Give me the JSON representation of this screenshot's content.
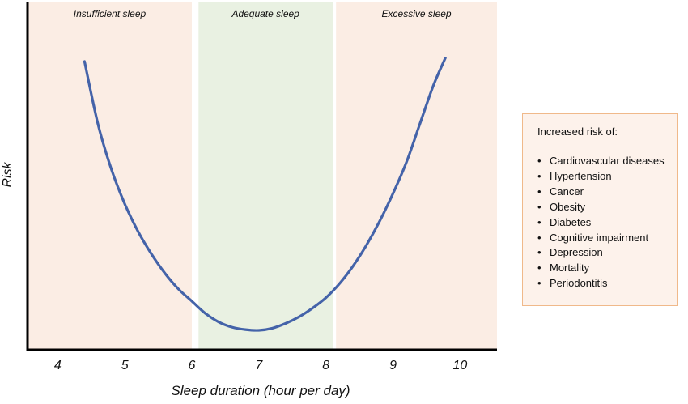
{
  "chart_data": {
    "type": "line",
    "title": "",
    "xlabel": "Sleep duration (hour per day)",
    "ylabel": "Risk",
    "xlim": [
      3.55,
      10.55
    ],
    "ylim": [
      0,
      100
    ],
    "x_ticks": [
      4,
      5,
      6,
      7,
      8,
      9,
      10
    ],
    "grid": false,
    "regions": [
      {
        "label": "Insufficient sleep",
        "x_start": 3.55,
        "x_end": 6.0,
        "color": "#fbede4"
      },
      {
        "label": "Adequate sleep",
        "x_start": 6.1,
        "x_end": 8.1,
        "color": "#e9f1e2"
      },
      {
        "label": "Excessive sleep",
        "x_start": 8.15,
        "x_end": 10.55,
        "color": "#fbede4"
      }
    ],
    "series": [
      {
        "name": "Risk curve",
        "color": "#4463a9",
        "x": [
          4.4,
          4.6,
          4.8,
          5.0,
          5.2,
          5.4,
          5.6,
          5.8,
          6.0,
          6.2,
          6.4,
          6.6,
          6.8,
          7.0,
          7.2,
          7.4,
          7.6,
          7.8,
          8.0,
          8.2,
          8.4,
          8.6,
          8.8,
          9.0,
          9.2,
          9.4,
          9.6,
          9.78
        ],
        "values": [
          83,
          65,
          52,
          42,
          34,
          27.5,
          22,
          17.5,
          14,
          10.5,
          8,
          6.5,
          5.8,
          5.6,
          6.2,
          7.6,
          9.5,
          12,
          15,
          19,
          24,
          30,
          37,
          45,
          54,
          65,
          76,
          84
        ]
      }
    ]
  },
  "legend_box": {
    "title": "Increased risk of:",
    "items": [
      "Cardiovascular diseases",
      "Hypertension",
      "Cancer",
      "Obesity",
      "Diabetes",
      "Cognitive impairment",
      "Depression",
      "Mortality",
      "Periodontitis"
    ]
  }
}
